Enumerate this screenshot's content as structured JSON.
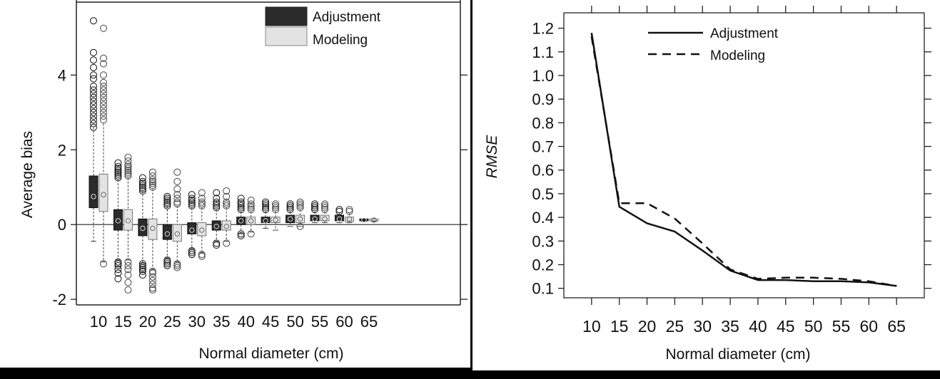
{
  "chart_data": [
    {
      "type": "box",
      "title": "",
      "xlabel": "Normal diameter (cm)",
      "ylabel": "Average bias",
      "categories": [
        "10",
        "15",
        "20",
        "25",
        "30",
        "35",
        "40",
        "45",
        "50",
        "55",
        "60",
        "65"
      ],
      "ylim": [
        -2.15,
        5.95
      ],
      "yticks": [
        -2,
        0,
        2,
        4
      ],
      "ytick_labels": [
        "-2",
        "0",
        "2",
        "4"
      ],
      "reference_line": 0,
      "legend": {
        "placement": "top-right",
        "entries": [
          "Adjustment",
          "Modeling"
        ]
      },
      "colors": {
        "Adjustment": "#2b2b2b",
        "Modeling": "#e3e3e3"
      },
      "series": [
        {
          "name": "Adjustment",
          "boxes": [
            {
              "q1": 0.45,
              "median": 0.75,
              "q3": 1.3,
              "lo": -0.45,
              "hi": 2.6,
              "out_hi": [
                2.6,
                2.7,
                2.8,
                2.9,
                3.0,
                3.1,
                3.2,
                3.3,
                3.4,
                3.5,
                3.6,
                3.7,
                3.9,
                4.0,
                4.2,
                4.4,
                4.6,
                5.45
              ],
              "out_lo": []
            },
            {
              "q1": -0.15,
              "median": 0.1,
              "q3": 0.4,
              "lo": -0.95,
              "hi": 1.2,
              "out_hi": [
                1.25,
                1.3,
                1.35,
                1.4,
                1.45,
                1.5,
                1.55,
                1.65
              ],
              "out_lo": [
                -1.0,
                -1.05,
                -1.1,
                -1.2,
                -1.3,
                -1.45
              ]
            },
            {
              "q1": -0.3,
              "median": -0.1,
              "q3": 0.15,
              "lo": -1.05,
              "hi": 0.9,
              "out_hi": [
                0.9,
                0.95,
                1.0,
                1.05,
                1.1,
                1.15,
                1.25
              ],
              "out_lo": [
                -1.05,
                -1.1,
                -1.15,
                -1.2,
                -1.25,
                -1.35
              ]
            },
            {
              "q1": -0.4,
              "median": -0.25,
              "q3": 0.0,
              "lo": -0.9,
              "hi": 0.5,
              "out_hi": [
                0.5,
                0.55,
                0.6,
                0.65,
                0.7,
                0.75
              ],
              "out_lo": [
                -0.95,
                -1.0,
                -1.05,
                -1.1
              ]
            },
            {
              "q1": -0.25,
              "median": -0.15,
              "q3": 0.05,
              "lo": -0.65,
              "hi": 0.45,
              "out_hi": [
                0.5,
                0.55,
                0.6,
                0.65,
                0.7,
                0.8
              ],
              "out_lo": [
                -0.7,
                -0.75,
                -0.8
              ]
            },
            {
              "q1": -0.15,
              "median": -0.05,
              "q3": 0.1,
              "lo": -0.45,
              "hi": 0.4,
              "out_hi": [
                0.45,
                0.5,
                0.55,
                0.6,
                0.7,
                0.85
              ],
              "out_lo": [
                -0.5,
                -0.55
              ]
            },
            {
              "q1": 0.0,
              "median": 0.1,
              "q3": 0.2,
              "lo": -0.25,
              "hi": 0.35,
              "out_hi": [
                0.4,
                0.45,
                0.5,
                0.55,
                0.6,
                0.7
              ],
              "out_lo": [
                -0.25,
                -0.3
              ]
            },
            {
              "q1": 0.05,
              "median": 0.1,
              "q3": 0.2,
              "lo": -0.1,
              "hi": 0.35,
              "out_hi": [
                0.4,
                0.45,
                0.5,
                0.55,
                0.6
              ],
              "out_lo": []
            },
            {
              "q1": 0.05,
              "median": 0.15,
              "q3": 0.25,
              "lo": -0.05,
              "hi": 0.35,
              "out_hi": [
                0.4,
                0.45,
                0.5,
                0.55
              ],
              "out_lo": []
            },
            {
              "q1": 0.1,
              "median": 0.15,
              "q3": 0.25,
              "lo": 0.05,
              "hi": 0.35,
              "out_hi": [
                0.4,
                0.45,
                0.5,
                0.55
              ],
              "out_lo": []
            },
            {
              "q1": 0.1,
              "median": 0.15,
              "q3": 0.25,
              "lo": 0.05,
              "hi": 0.3,
              "out_hi": [
                0.35,
                0.4
              ],
              "out_lo": []
            },
            {
              "q1": 0.1,
              "median": 0.12,
              "q3": 0.15,
              "lo": 0.08,
              "hi": 0.18,
              "out_hi": [],
              "out_lo": []
            }
          ]
        },
        {
          "name": "Modeling",
          "boxes": [
            {
              "q1": 0.35,
              "median": 0.8,
              "q3": 1.35,
              "lo": -1.0,
              "hi": 2.7,
              "out_hi": [
                2.8,
                2.9,
                3.0,
                3.1,
                3.2,
                3.3,
                3.4,
                3.5,
                3.6,
                3.7,
                3.8,
                4.0,
                4.3,
                4.45,
                5.25
              ],
              "out_lo": [
                -1.05
              ]
            },
            {
              "q1": -0.15,
              "median": 0.1,
              "q3": 0.4,
              "lo": -0.95,
              "hi": 1.25,
              "out_hi": [
                1.3,
                1.35,
                1.4,
                1.45,
                1.5,
                1.55,
                1.6,
                1.7,
                1.8
              ],
              "out_lo": [
                -1.0,
                -1.1,
                -1.2,
                -1.35,
                -1.55,
                -1.75
              ]
            },
            {
              "q1": -0.4,
              "median": -0.1,
              "q3": 0.15,
              "lo": -1.2,
              "hi": 0.95,
              "out_hi": [
                1.0,
                1.05,
                1.1,
                1.15,
                1.2,
                1.3,
                1.4
              ],
              "out_lo": [
                -1.25,
                -1.3,
                -1.4,
                -1.5,
                -1.6,
                -1.7,
                -1.75
              ]
            },
            {
              "q1": -0.45,
              "median": -0.25,
              "q3": 0.0,
              "lo": -1.0,
              "hi": 0.5,
              "out_hi": [
                0.55,
                0.6,
                0.7,
                0.8,
                0.95,
                1.15,
                1.4
              ],
              "out_lo": [
                -1.05,
                -1.1,
                -1.15
              ]
            },
            {
              "q1": -0.3,
              "median": -0.15,
              "q3": 0.05,
              "lo": -0.75,
              "hi": 0.45,
              "out_hi": [
                0.5,
                0.55,
                0.6,
                0.7,
                0.85
              ],
              "out_lo": [
                -0.8,
                -0.85
              ]
            },
            {
              "q1": -0.15,
              "median": -0.05,
              "q3": 0.1,
              "lo": -0.45,
              "hi": 0.45,
              "out_hi": [
                0.5,
                0.55,
                0.6,
                0.75,
                0.9
              ],
              "out_lo": [
                -0.5
              ]
            },
            {
              "q1": 0.0,
              "median": 0.1,
              "q3": 0.2,
              "lo": -0.2,
              "hi": 0.35,
              "out_hi": [
                0.4,
                0.45,
                0.5,
                0.55,
                0.65
              ],
              "out_lo": [
                -0.25
              ]
            },
            {
              "q1": 0.05,
              "median": 0.12,
              "q3": 0.2,
              "lo": -0.15,
              "hi": 0.35,
              "out_hi": [
                0.4,
                0.45,
                0.5,
                0.55
              ],
              "out_lo": []
            },
            {
              "q1": 0.05,
              "median": 0.15,
              "q3": 0.25,
              "lo": -0.05,
              "hi": 0.4,
              "out_hi": [
                0.45,
                0.5,
                0.55,
                0.6
              ],
              "out_lo": [
                -0.05
              ]
            },
            {
              "q1": 0.1,
              "median": 0.15,
              "q3": 0.25,
              "lo": 0.05,
              "hi": 0.35,
              "out_hi": [
                0.4,
                0.45,
                0.5,
                0.55
              ],
              "out_lo": []
            },
            {
              "q1": 0.08,
              "median": 0.15,
              "q3": 0.2,
              "lo": 0.05,
              "hi": 0.3,
              "out_hi": [
                0.35,
                0.4
              ],
              "out_lo": []
            },
            {
              "q1": 0.1,
              "median": 0.12,
              "q3": 0.15,
              "lo": 0.08,
              "hi": 0.18,
              "out_hi": [],
              "out_lo": []
            }
          ]
        }
      ]
    },
    {
      "type": "line",
      "title": "",
      "xlabel": "Normal diameter (cm)",
      "ylabel": "RMSE",
      "x": [
        10,
        15,
        20,
        25,
        30,
        35,
        40,
        45,
        50,
        55,
        60,
        65
      ],
      "x_tick_labels": [
        "10",
        "15",
        "20",
        "25",
        "30",
        "35",
        "40",
        "45",
        "50",
        "55",
        "60",
        "65"
      ],
      "xlim": [
        5,
        70
      ],
      "ylim": [
        0.06,
        1.265
      ],
      "yticks": [
        0.1,
        0.2,
        0.3,
        0.4,
        0.5,
        0.6,
        0.7,
        0.8,
        0.9,
        1.0,
        1.1,
        1.2
      ],
      "ytick_labels": [
        "0.1",
        "0.2",
        "0.3",
        "0.4",
        "0.5",
        "0.6",
        "0.7",
        "0.8",
        "0.9",
        "1.0",
        "1.1",
        "1.2"
      ],
      "legend": {
        "placement": "top-left",
        "entries": [
          "Adjustment",
          "Modeling"
        ]
      },
      "series": [
        {
          "name": "Adjustment",
          "style": "solid",
          "values": [
            1.18,
            0.445,
            0.375,
            0.34,
            0.26,
            0.175,
            0.135,
            0.135,
            0.13,
            0.13,
            0.125,
            0.11
          ]
        },
        {
          "name": "Modeling",
          "style": "dashed",
          "values": [
            1.165,
            0.46,
            0.46,
            0.395,
            0.29,
            0.18,
            0.14,
            0.145,
            0.145,
            0.14,
            0.13,
            0.11
          ]
        }
      ]
    }
  ]
}
